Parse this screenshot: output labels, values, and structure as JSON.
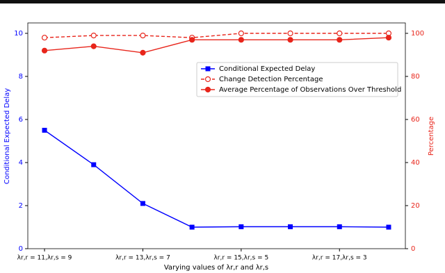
{
  "chart_data": {
    "type": "line",
    "categories": [
      "λr,r = 11,λr,s = 9",
      null,
      "λr,r = 13,λr,s = 7",
      null,
      "λr,r = 15,λr,s = 5",
      null,
      "λr,r = 17,λr,s = 3",
      null
    ],
    "x_label": "Varying values of λr,r and λr,s",
    "y_label": "Conditional Expected Delay",
    "y2_label": "Percentage",
    "ylim": [
      0,
      10
    ],
    "yticks": [
      0,
      2,
      4,
      6,
      8,
      10
    ],
    "y2lim": [
      0,
      100
    ],
    "y2ticks": [
      0,
      20,
      40,
      60,
      80,
      100
    ],
    "y_color": "#0000ff",
    "y2_color": "#e8251b",
    "legend": "center-right",
    "series": [
      {
        "name": "Conditional Expected Delay",
        "color": "#0000ff",
        "marker": "square",
        "dash": false,
        "axis": "y",
        "values": [
          5.5,
          3.9,
          2.1,
          1.0,
          1.02,
          1.02,
          1.02,
          1.0
        ]
      },
      {
        "name": "Change Detection Percentage",
        "color": "#e8251b",
        "marker": "circle-open",
        "dash": true,
        "axis": "y2",
        "values": [
          98,
          99,
          99,
          98,
          100,
          100,
          100,
          100
        ]
      },
      {
        "name": "Average Percentage of Observations Over Threshold",
        "color": "#e8251b",
        "marker": "circle",
        "dash": false,
        "axis": "y2",
        "values": [
          92,
          94,
          91,
          97,
          97,
          97,
          97,
          98
        ]
      }
    ]
  }
}
